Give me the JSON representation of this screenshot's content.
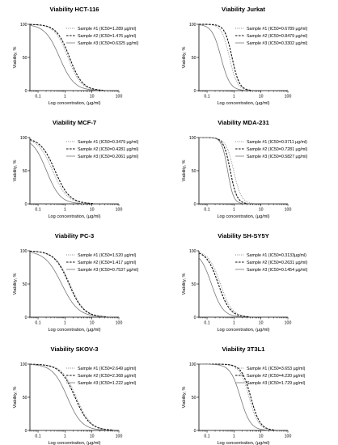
{
  "chart_data": [
    {
      "type": "line",
      "title": "Viability HCT-116",
      "xlabel": "Log concentration, (µg/ml)",
      "ylabel": "Viability, %",
      "xscale": "log",
      "xlim": [
        0.05,
        100
      ],
      "ylim": [
        0,
        100
      ],
      "xticks": [
        "0.1",
        "1",
        "10",
        "100"
      ],
      "yticks": [
        "0",
        "50",
        "100"
      ],
      "grid": false,
      "legend_position": "top-right",
      "series": [
        {
          "name": "Sample #1 (IC50=1.289 µg/ml)",
          "ic50": 1.289,
          "hill": 1.8,
          "style": "dotted"
        },
        {
          "name": "Sample #2 (IC50=1.476 µg/ml)",
          "ic50": 1.476,
          "hill": 1.8,
          "style": "dashed"
        },
        {
          "name": "Sample #3 (IC50=0.6325 µg/ml)",
          "ic50": 0.6325,
          "hill": 1.6,
          "style": "solid"
        }
      ]
    },
    {
      "type": "line",
      "title": "Viability Jurkat",
      "xlabel": "Log concentration, (µg/ml)",
      "ylabel": "Viability, %",
      "xscale": "log",
      "xlim": [
        0.05,
        100
      ],
      "ylim": [
        0,
        100
      ],
      "xticks": [
        "0.1",
        "1",
        "10",
        "100"
      ],
      "yticks": [
        "0",
        "50",
        "100"
      ],
      "grid": false,
      "legend_position": "top-right",
      "series": [
        {
          "name": "Sample #1 (IC50=0.6789 µg/ml)",
          "ic50": 0.6789,
          "hill": 3.0,
          "style": "dotted"
        },
        {
          "name": "Sample #2 (IC50=0.8479 µg/ml)",
          "ic50": 0.8479,
          "hill": 3.2,
          "style": "dashed"
        },
        {
          "name": "Sample #3 (IC50=0.3302 µg/ml)",
          "ic50": 0.3302,
          "hill": 2.6,
          "style": "solid"
        }
      ]
    },
    {
      "type": "line",
      "title": "Viability MCF-7",
      "xlabel": "Log concentration, (µg/ml)",
      "ylabel": "Viability, %",
      "xscale": "log",
      "xlim": [
        0.05,
        100
      ],
      "ylim": [
        0,
        100
      ],
      "xticks": [
        "0.1",
        "1",
        "10",
        "100"
      ],
      "yticks": [
        "0",
        "50",
        "100"
      ],
      "grid": false,
      "legend_position": "top-right",
      "series": [
        {
          "name": "Sample #1 (IC50=0.3479 µg/ml)",
          "ic50": 0.3479,
          "hill": 1.6,
          "style": "dotted"
        },
        {
          "name": "Sample #2 (IC50=0.4281 µg/ml)",
          "ic50": 0.4281,
          "hill": 1.6,
          "style": "dashed"
        },
        {
          "name": "Sample #3 (IC50=0.2061 µg/ml)",
          "ic50": 0.2061,
          "hill": 1.7,
          "style": "solid"
        }
      ]
    },
    {
      "type": "line",
      "title": "Viability MDA-231",
      "xlabel": "Log concentration, (µg/ml)",
      "ylabel": "Viability, %",
      "xscale": "log",
      "xlim": [
        0.05,
        100
      ],
      "ylim": [
        0,
        100
      ],
      "xticks": [
        "0.1",
        "1",
        "10",
        "100"
      ],
      "yticks": [
        "0",
        "50",
        "100"
      ],
      "grid": false,
      "legend_position": "top-right",
      "series": [
        {
          "name": "Sample #1 (IC50=0.9711 µg/ml)",
          "ic50": 0.9711,
          "hill": 3.0,
          "style": "dotted"
        },
        {
          "name": "Sample #2 (IC50=0.7281 µg/ml)",
          "ic50": 0.7281,
          "hill": 3.5,
          "style": "dashed"
        },
        {
          "name": "Sample #3 (IC50=0.5827 µg/ml)",
          "ic50": 0.5827,
          "hill": 4.0,
          "style": "solid"
        }
      ]
    },
    {
      "type": "line",
      "title": "Viability PC-3",
      "xlabel": "Log concentration, (µg/ml)",
      "ylabel": "Viability, %",
      "xscale": "log",
      "xlim": [
        0.05,
        100
      ],
      "ylim": [
        0,
        100
      ],
      "xticks": [
        "0.1",
        "1",
        "10",
        "100"
      ],
      "yticks": [
        "0",
        "50",
        "100"
      ],
      "grid": false,
      "legend_position": "top-right",
      "series": [
        {
          "name": "Sample #1 (IC50=1.520 µg/ml)",
          "ic50": 1.52,
          "hill": 1.6,
          "style": "dotted"
        },
        {
          "name": "Sample #2 (IC50=1.417 µg/ml)",
          "ic50": 1.417,
          "hill": 1.6,
          "style": "dashed"
        },
        {
          "name": "Sample #3 (IC50=0.7537 µg/ml)",
          "ic50": 0.7537,
          "hill": 1.4,
          "style": "solid"
        }
      ]
    },
    {
      "type": "line",
      "title": "Viability SH-SY5Y",
      "xlabel": "Log concentration, (µg/ml)",
      "ylabel": "Viability, %",
      "xscale": "log",
      "xlim": [
        0.05,
        100
      ],
      "ylim": [
        0,
        100
      ],
      "xticks": [
        "0.1",
        "1",
        "10",
        "100"
      ],
      "yticks": [
        "0",
        "50",
        "100"
      ],
      "grid": false,
      "legend_position": "top-right",
      "series": [
        {
          "name": "Sample #1 (IC50=0.3133µg/ml)",
          "ic50": 0.3133,
          "hill": 2.0,
          "style": "dotted"
        },
        {
          "name": "Sample #2 (IC50=0.2631 µg/ml)",
          "ic50": 0.2631,
          "hill": 2.0,
          "style": "dashed"
        },
        {
          "name": "Sample #3 (IC50=0.1454 µg/ml)",
          "ic50": 0.1454,
          "hill": 2.0,
          "style": "solid"
        }
      ]
    },
    {
      "type": "line",
      "title": "Viability SKOV-3",
      "xlabel": "Log concentration, (µg/ml)",
      "ylabel": "Viability, %",
      "xscale": "log",
      "xlim": [
        0.05,
        100
      ],
      "ylim": [
        0,
        100
      ],
      "xticks": [
        "0.1",
        "1",
        "10",
        "100"
      ],
      "yticks": [
        "0",
        "50",
        "100"
      ],
      "grid": false,
      "legend_position": "top-right",
      "series": [
        {
          "name": "Sample #1 (IC50=2.649 µg/ml)",
          "ic50": 2.649,
          "hill": 1.6,
          "style": "dotted"
        },
        {
          "name": "Sample #2 (IC50=2.368 µg/ml)",
          "ic50": 2.368,
          "hill": 1.6,
          "style": "dashed"
        },
        {
          "name": "Sample #3 (IC50=1.222 µg/ml)",
          "ic50": 1.222,
          "hill": 1.6,
          "style": "solid"
        }
      ]
    },
    {
      "type": "line",
      "title": "Viability 3T3L1",
      "xlabel": "Log concentration, (µg/ml)",
      "ylabel": "Viability, %",
      "xscale": "log",
      "xlim": [
        0.05,
        100
      ],
      "ylim": [
        0,
        100
      ],
      "xticks": [
        "0.1",
        "1",
        "10",
        "100"
      ],
      "yticks": [
        "0",
        "50",
        "100"
      ],
      "grid": false,
      "legend_position": "top-right",
      "series": [
        {
          "name": "Sample #1 (IC50=3.653 µg/ml)",
          "ic50": 3.653,
          "hill": 2.5,
          "style": "dotted"
        },
        {
          "name": "Sample #2 (IC50=4.220 µg/ml)",
          "ic50": 4.22,
          "hill": 2.5,
          "style": "dashed"
        },
        {
          "name": "Sample #3 (IC50=1.729 µg/ml)",
          "ic50": 1.729,
          "hill": 2.3,
          "style": "solid"
        }
      ]
    }
  ],
  "colors": {
    "sample_1": "#888888",
    "sample_2": "#111111",
    "sample_3": "#777777",
    "axis": "#000000"
  }
}
